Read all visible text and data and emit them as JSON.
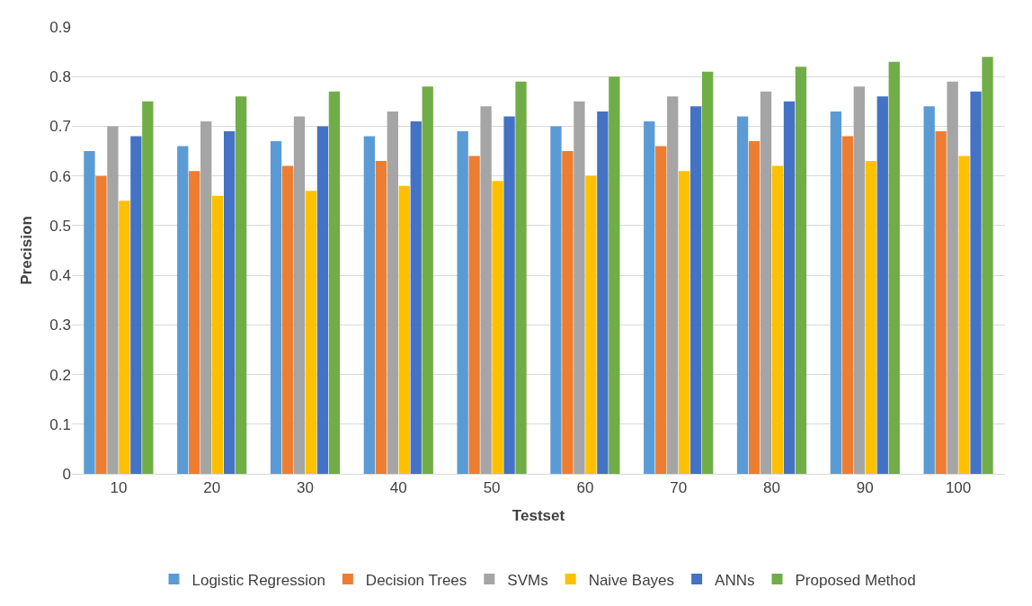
{
  "chart_data": {
    "type": "bar",
    "xlabel": "Testset",
    "ylabel": "Precision",
    "categories": [
      "10",
      "20",
      "30",
      "40",
      "50",
      "60",
      "70",
      "80",
      "90",
      "100"
    ],
    "series": [
      {
        "name": "Logistic Regression",
        "color": "#5b9bd5",
        "values": [
          0.65,
          0.66,
          0.67,
          0.68,
          0.69,
          0.7,
          0.71,
          0.72,
          0.73,
          0.74
        ]
      },
      {
        "name": "Decision Trees",
        "color": "#ed7d31",
        "values": [
          0.6,
          0.61,
          0.62,
          0.63,
          0.64,
          0.65,
          0.66,
          0.67,
          0.68,
          0.69
        ]
      },
      {
        "name": "SVMs",
        "color": "#a5a5a5",
        "values": [
          0.7,
          0.71,
          0.72,
          0.73,
          0.74,
          0.75,
          0.76,
          0.77,
          0.78,
          0.79
        ]
      },
      {
        "name": "Naive Bayes",
        "color": "#ffc000",
        "values": [
          0.55,
          0.56,
          0.57,
          0.58,
          0.59,
          0.6,
          0.61,
          0.62,
          0.63,
          0.64
        ]
      },
      {
        "name": "ANNs",
        "color": "#4472c4",
        "values": [
          0.68,
          0.69,
          0.7,
          0.71,
          0.72,
          0.73,
          0.74,
          0.75,
          0.76,
          0.77
        ]
      },
      {
        "name": "Proposed Method",
        "color": "#70ad47",
        "values": [
          0.75,
          0.76,
          0.77,
          0.78,
          0.79,
          0.8,
          0.81,
          0.82,
          0.83,
          0.84
        ]
      }
    ],
    "ylim": [
      0,
      0.9
    ],
    "yticks": [
      0,
      0.1,
      0.2,
      0.3,
      0.4,
      0.5,
      0.6,
      0.7,
      0.8,
      0.9
    ],
    "grid": "y",
    "legend": "bottom"
  }
}
